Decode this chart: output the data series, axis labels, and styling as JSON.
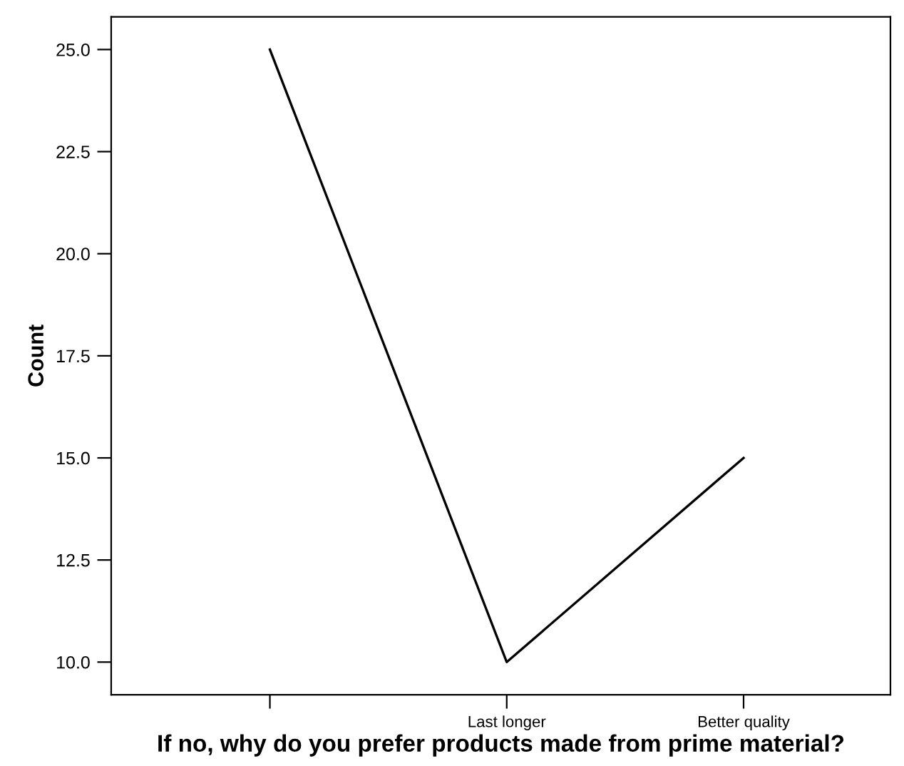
{
  "chart_data": {
    "type": "line",
    "xlabel": "If no, why do you prefer products made from prime material?",
    "ylabel": "Count",
    "categories": [
      null,
      "Last longer",
      "Better quality"
    ],
    "series": [
      {
        "color": "#000000",
        "values": [
          25,
          10,
          15
        ]
      }
    ],
    "ylim": [
      9.2,
      25.8
    ],
    "yticks": [
      {
        "value": 10,
        "label": "10.0"
      },
      {
        "value": 12.5,
        "label": "12.5"
      },
      {
        "value": 15,
        "label": "15.0"
      },
      {
        "value": 17.5,
        "label": "17.5"
      },
      {
        "value": 20,
        "label": "20.0"
      },
      {
        "value": 22.5,
        "label": "22.5"
      },
      {
        "value": 25,
        "label": "25.0"
      }
    ],
    "grid": false,
    "legend": false,
    "marker": "none",
    "line_style": "solid"
  }
}
